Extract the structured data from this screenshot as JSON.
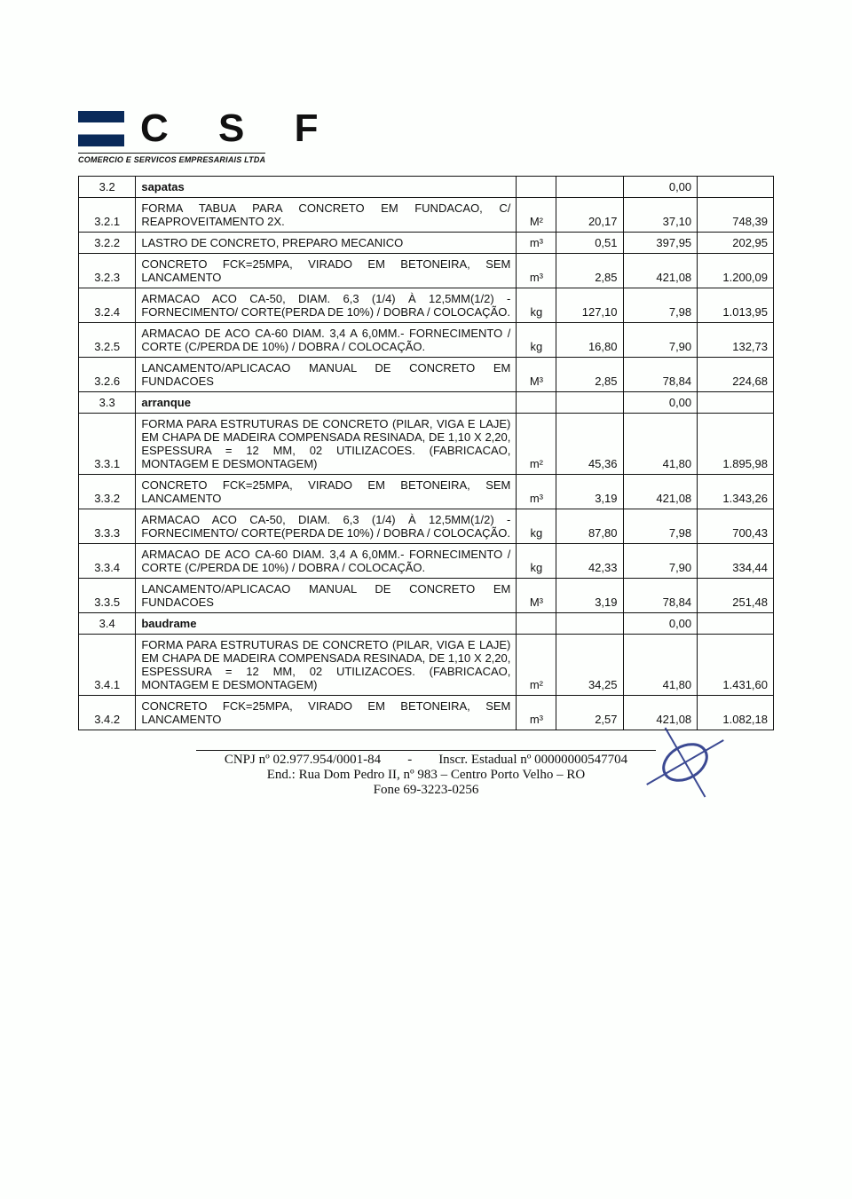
{
  "logo": {
    "letters": "C S F",
    "subtitle": "COMERCIO E SERVICOS EMPRESARIAIS LTDA"
  },
  "rows": [
    {
      "code": "3.2",
      "desc": "sapatas",
      "bold": true,
      "unit": "",
      "qty": "",
      "pu": "0,00",
      "tot": ""
    },
    {
      "code": "3.2.1",
      "desc": "FORMA TABUA PARA CONCRETO EM FUNDACAO, C/ REAPROVEITAMENTO 2X.",
      "unit": "M²",
      "qty": "20,17",
      "pu": "37,10",
      "tot": "748,39"
    },
    {
      "code": "3.2.2",
      "desc": "LASTRO DE CONCRETO, PREPARO MECANICO",
      "unit": "m³",
      "qty": "0,51",
      "pu": "397,95",
      "tot": "202,95"
    },
    {
      "code": "3.2.3",
      "desc": "CONCRETO FCK=25MPA, VIRADO EM BETONEIRA, SEM LANCAMENTO",
      "unit": "m³",
      "qty": "2,85",
      "pu": "421,08",
      "tot": "1.200,09"
    },
    {
      "code": "3.2.4",
      "desc": "ARMACAO ACO CA-50, DIAM. 6,3 (1/4) À 12,5MM(1/2) - FORNECIMENTO/ CORTE(PERDA DE 10%) / DOBRA / COLOCAÇÃO.",
      "unit": "kg",
      "qty": "127,10",
      "pu": "7,98",
      "tot": "1.013,95"
    },
    {
      "code": "3.2.5",
      "desc": "ARMACAO DE ACO CA-60 DIAM. 3,4 A 6,0MM.- FORNECIMENTO / CORTE (C/PERDA DE 10%) / DOBRA / COLOCAÇÃO.",
      "unit": "kg",
      "qty": "16,80",
      "pu": "7,90",
      "tot": "132,73"
    },
    {
      "code": "3.2.6",
      "desc": "LANCAMENTO/APLICACAO MANUAL DE CONCRETO EM FUNDACOES",
      "unit": "M³",
      "qty": "2,85",
      "pu": "78,84",
      "tot": "224,68"
    },
    {
      "code": "3.3",
      "desc": "arranque",
      "bold": true,
      "unit": "",
      "qty": "",
      "pu": "0,00",
      "tot": ""
    },
    {
      "code": "3.3.1",
      "desc": "FORMA PARA ESTRUTURAS DE CONCRETO (PILAR, VIGA E LAJE) EM CHAPA DE MADEIRA COMPENSADA RESINADA, DE 1,10 X 2,20, ESPESSURA = 12 MM, 02 UTILIZACOES. (FABRICACAO, MONTAGEM E DESMONTAGEM)",
      "unit": "m²",
      "qty": "45,36",
      "pu": "41,80",
      "tot": "1.895,98"
    },
    {
      "code": "3.3.2",
      "desc": "CONCRETO FCK=25MPA, VIRADO EM BETONEIRA, SEM LANCAMENTO",
      "unit": "m³",
      "qty": "3,19",
      "pu": "421,08",
      "tot": "1.343,26"
    },
    {
      "code": "3.3.3",
      "desc": "ARMACAO ACO CA-50, DIAM. 6,3 (1/4) À 12,5MM(1/2) - FORNECIMENTO/ CORTE(PERDA DE 10%) / DOBRA / COLOCAÇÃO.",
      "unit": "kg",
      "qty": "87,80",
      "pu": "7,98",
      "tot": "700,43"
    },
    {
      "code": "3.3.4",
      "desc": "ARMACAO DE ACO CA-60 DIAM. 3,4 A 6,0MM.- FORNECIMENTO / CORTE (C/PERDA DE 10%) / DOBRA / COLOCAÇÃO.",
      "unit": "kg",
      "qty": "42,33",
      "pu": "7,90",
      "tot": "334,44"
    },
    {
      "code": "3.3.5",
      "desc": "LANCAMENTO/APLICACAO MANUAL DE CONCRETO EM FUNDACOES",
      "unit": "M³",
      "qty": "3,19",
      "pu": "78,84",
      "tot": "251,48"
    },
    {
      "code": "3.4",
      "desc": "baudrame",
      "bold": true,
      "unit": "",
      "qty": "",
      "pu": "0,00",
      "tot": ""
    },
    {
      "code": "3.4.1",
      "desc": "FORMA PARA ESTRUTURAS DE CONCRETO (PILAR, VIGA E LAJE) EM CHAPA DE MADEIRA COMPENSADA RESINADA, DE 1,10 X 2,20, ESPESSURA = 12 MM, 02 UTILIZACOES. (FABRICACAO, MONTAGEM E DESMONTAGEM)",
      "unit": "m²",
      "qty": "34,25",
      "pu": "41,80",
      "tot": "1.431,60"
    },
    {
      "code": "3.4.2",
      "desc": "CONCRETO FCK=25MPA, VIRADO EM BETONEIRA, SEM LANCAMENTO",
      "unit": "m³",
      "qty": "2,57",
      "pu": "421,08",
      "tot": "1.082,18"
    }
  ],
  "footer": {
    "line1a": "CNPJ nº 02.977.954/0001-84",
    "line1sep": "-",
    "line1b": "Inscr. Estadual nº 00000000547704",
    "line2": "End.: Rua Dom Pedro II, nº 983 – Centro Porto Velho – RO",
    "line3": "Fone 69-3223-0256"
  }
}
